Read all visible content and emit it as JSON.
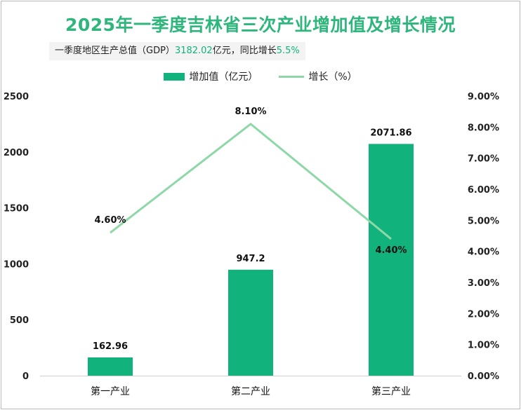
{
  "title": "2025年一季度吉林省三次产业增加值及增长情况",
  "subtitle": {
    "prefix": "一季度地区生产总值（GDP）",
    "gdp_value": "3182.02",
    "middle": "亿元，同比增长",
    "growth_value": "5.5%"
  },
  "colors": {
    "bar": "#12b27d",
    "line": "#8ed8a8",
    "title": "#2fb67d"
  },
  "chart_data": {
    "type": "bar",
    "categories": [
      "第一产业",
      "第二产业",
      "第三产业"
    ],
    "series": [
      {
        "name": "增加值（亿元）",
        "type": "bar",
        "axis": "left",
        "values": [
          162.96,
          947.2,
          2071.86
        ],
        "labels": [
          "162.96",
          "947.2",
          "2071.86"
        ]
      },
      {
        "name": "增长（%）",
        "type": "line",
        "axis": "right",
        "values": [
          4.6,
          8.1,
          4.4
        ],
        "labels": [
          "4.60%",
          "8.10%",
          "4.40%"
        ]
      }
    ],
    "y_left": {
      "ylim": [
        0,
        2500
      ],
      "ticks": [
        "0",
        "500",
        "1000",
        "1500",
        "2000",
        "2500"
      ],
      "tick_values": [
        0,
        500,
        1000,
        1500,
        2000,
        2500
      ]
    },
    "y_right": {
      "ylim": [
        0,
        9
      ],
      "ticks": [
        "0.00%",
        "1.00%",
        "2.00%",
        "3.00%",
        "4.00%",
        "5.00%",
        "6.00%",
        "7.00%",
        "8.00%",
        "9.00%"
      ],
      "tick_values": [
        0,
        1,
        2,
        3,
        4,
        5,
        6,
        7,
        8,
        9
      ]
    },
    "legend_position": "top-center",
    "grid": false
  }
}
